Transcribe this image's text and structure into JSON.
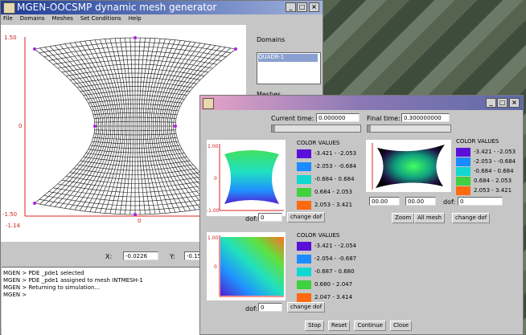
{
  "main_window": {
    "title": "MGEN-OOCSMP dynamic mesh generator",
    "menu": [
      "File",
      "Domains",
      "Meshes",
      "Set Conditions",
      "Help"
    ],
    "plot_y_labels": [
      "1.50",
      "0",
      "-1.50"
    ],
    "plot_x_labels": [
      "-1.14",
      "0"
    ],
    "domains_label": "Domains",
    "domains": [
      "QUADR-1"
    ],
    "meshes_label": "Meshes",
    "x_label": "X:",
    "x_value": "-0.0226",
    "y_label": "Y:",
    "y_value": "-0.15",
    "console": [
      "MGEN > PDE _pde1 selected",
      "MGEN > PDE _pde1 assigned to mesh INTMESH-1",
      "MGEN > Returning to simulation...",
      "MGEN >"
    ]
  },
  "sim_window": {
    "current_time_label": "Current time:",
    "current_time": "0.000000",
    "final_time_label": "Final time:",
    "final_time": "0.300000000",
    "plots": [
      {
        "legend_title": "COLOR VALUES",
        "legend": [
          "-3.421 - -2.053",
          "-2.053 - -0.684",
          "-0.684 - 0.684",
          "0.684 - 2.053",
          "2.053 - 3.421"
        ],
        "y_labels": [
          "1.00",
          "0",
          "-1.00"
        ],
        "dof_label": "dof:",
        "dof": "0",
        "button": "change dof"
      },
      {
        "legend_title": "COLOR VALUES",
        "legend": [
          "-3.421 - -2.053",
          "-2.053 - -0.684",
          "-0.684 - 0.684",
          "0.684 - 2.053",
          "2.053 - 3.421"
        ],
        "view": [
          "00.00",
          "00.00"
        ],
        "dof_label": "dof:",
        "dof": "0",
        "buttons": [
          "Zoom",
          "All mesh",
          "change dof"
        ]
      },
      {
        "legend_title": "COLOR VALUES",
        "legend": [
          "-3.421 - -2.054",
          "-2.054 - -0.687",
          "-0.687 - 0.680",
          "0.680 - 2.047",
          "2.047 - 3.414"
        ],
        "y_labels": [
          "1.00",
          "0"
        ],
        "dof_label": "dof:",
        "dof": "0",
        "button": "change dof"
      }
    ],
    "buttons": [
      "Stop",
      "Reset",
      "Continue",
      "Close"
    ]
  }
}
